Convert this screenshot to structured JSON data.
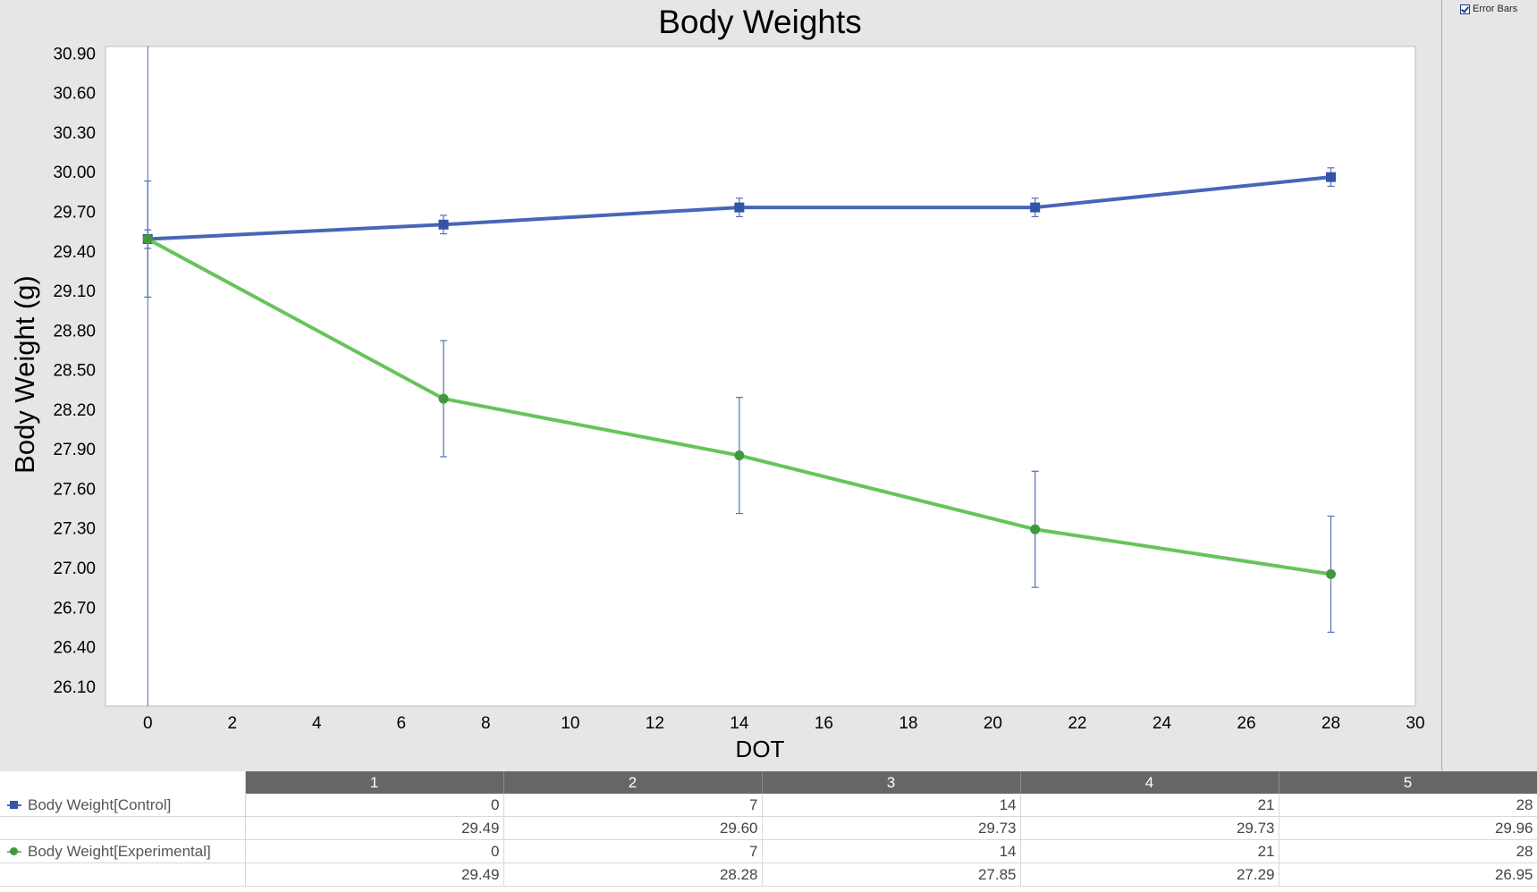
{
  "colors": {
    "control": "#4666b8",
    "control_marker": "#3355a8",
    "experimental": "#66c45c",
    "experimental_marker": "#3e9a3c",
    "error_bar": "#5570b8",
    "grid_line": "#4666b8"
  },
  "chart_data": {
    "type": "line",
    "title": "Body Weights",
    "xlabel": "DOT",
    "ylabel": "Body Weight (g)",
    "xlim": [
      -1,
      30
    ],
    "ylim": [
      25.95,
      30.95
    ],
    "x_ticks": [
      "0",
      "2",
      "4",
      "6",
      "8",
      "10",
      "12",
      "14",
      "16",
      "18",
      "20",
      "22",
      "24",
      "26",
      "28",
      "30"
    ],
    "y_ticks": [
      "30.90",
      "30.60",
      "30.30",
      "30.00",
      "29.70",
      "29.40",
      "29.10",
      "28.80",
      "28.50",
      "28.20",
      "27.90",
      "27.60",
      "27.30",
      "27.00",
      "26.70",
      "26.40",
      "26.10"
    ],
    "grid": false,
    "series": [
      {
        "name": "Body Weight[Control]",
        "marker": "square",
        "color_key": "control",
        "x": [
          0,
          7,
          14,
          21,
          28
        ],
        "y": [
          29.49,
          29.6,
          29.73,
          29.73,
          29.96
        ],
        "err_low": [
          29.42,
          29.53,
          29.66,
          29.66,
          29.89
        ],
        "err_high": [
          29.56,
          29.67,
          29.8,
          29.8,
          30.03
        ]
      },
      {
        "name": "Body Weight[Experimental]",
        "marker": "circle",
        "color_key": "experimental",
        "x": [
          0,
          7,
          14,
          21,
          28
        ],
        "y": [
          29.49,
          28.28,
          27.85,
          27.29,
          26.95
        ],
        "err_low": [
          29.05,
          27.84,
          27.41,
          26.85,
          26.51
        ],
        "err_high": [
          29.93,
          28.72,
          28.29,
          27.73,
          27.39
        ]
      }
    ],
    "vertical_line_x": 0
  },
  "side_panel": {
    "error_bars_label": "Error Bars",
    "error_bars_checked": true
  },
  "table": {
    "columns": [
      "1",
      "2",
      "3",
      "4",
      "5"
    ],
    "rows": [
      {
        "label": "Body Weight[Control]",
        "marker": "square",
        "color_key": "control",
        "values": [
          "0",
          "7",
          "14",
          "21",
          "28"
        ]
      },
      {
        "label": "",
        "values": [
          "29.49",
          "29.60",
          "29.73",
          "29.73",
          "29.96"
        ]
      },
      {
        "label": "Body Weight[Experimental]",
        "marker": "circle",
        "color_key": "experimental",
        "values": [
          "0",
          "7",
          "14",
          "21",
          "28"
        ]
      },
      {
        "label": "",
        "values": [
          "29.49",
          "28.28",
          "27.85",
          "27.29",
          "26.95"
        ]
      }
    ]
  }
}
